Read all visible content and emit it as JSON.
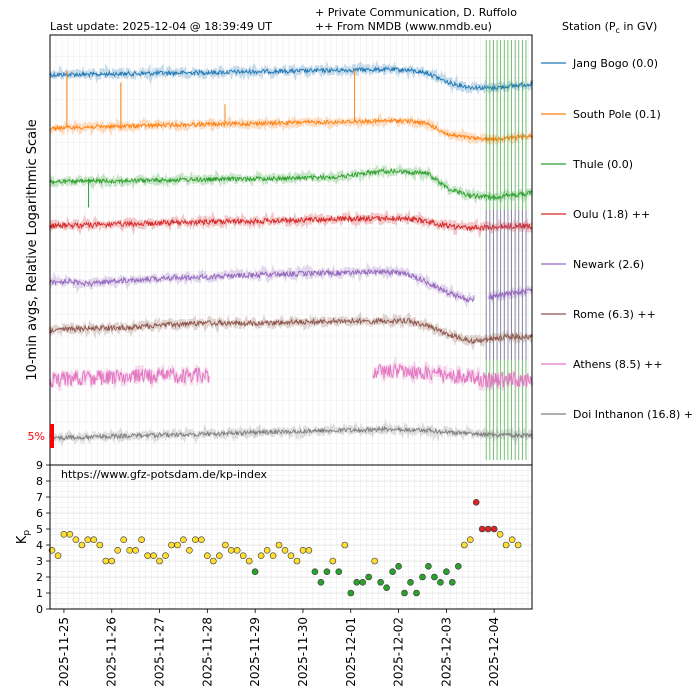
{
  "header": {
    "last_update": "Last update: 2025-12-04 @ 18:39:49 UT",
    "credit1": "+ Private Communication, D. Ruffolo",
    "credit2": "++ From NMDB (www.nmdb.eu)",
    "legend_title": "Station (P",
    "legend_title_sub": "c",
    "legend_title_tail": " in GV)"
  },
  "chart_data": [
    {
      "type": "line",
      "ylabel": "10-min avgs, Relative Logarithmic Scale",
      "y_scale": "relative logarithmic",
      "scale_bar_label": "5%",
      "grid": true,
      "legend_placement": "right",
      "series": [
        {
          "name": "Jang Bogo (0.0)",
          "color": "#1f77b4",
          "trend": [
            0.0,
            0.03,
            0.02,
            0.05,
            0.06,
            0.08,
            0.09,
            0.11,
            0.12,
            0.14,
            0.16,
            0.17,
            0.18,
            0.2,
            0.22,
            0.24,
            0.25,
            0.23,
            0.1,
            -0.35,
            -0.55,
            -0.6,
            -0.5,
            -0.4
          ],
          "noise": 0.1,
          "gap": null,
          "spikes": []
        },
        {
          "name": "South Pole (0.1)",
          "color": "#ff7f0e",
          "trend": [
            0.0,
            0.02,
            0.05,
            0.07,
            0.09,
            0.12,
            0.14,
            0.16,
            0.18,
            0.19,
            0.21,
            0.23,
            0.25,
            0.26,
            0.28,
            0.3,
            0.32,
            0.33,
            0.2,
            -0.3,
            -0.45,
            -0.5,
            -0.45,
            -0.35
          ],
          "noise": 0.09,
          "gap": null,
          "spikes": [
            {
              "x": 0.035,
              "h": 2.6
            },
            {
              "x": 0.147,
              "h": 2.0
            },
            {
              "x": 0.363,
              "h": 0.9
            },
            {
              "x": 0.632,
              "h": 2.4
            }
          ]
        },
        {
          "name": "Thule (0.0)",
          "color": "#2ca02c",
          "trend": [
            0.0,
            0.02,
            0.04,
            0.05,
            0.06,
            0.08,
            0.1,
            0.11,
            0.12,
            0.14,
            0.15,
            0.16,
            0.18,
            0.2,
            0.25,
            0.4,
            0.5,
            0.45,
            0.4,
            -0.3,
            -0.6,
            -0.7,
            -0.6,
            -0.5
          ],
          "noise": 0.1,
          "gap": null,
          "spikes": [
            {
              "x": 0.08,
              "h": -1.2
            }
          ]
        },
        {
          "name": "Oulu (1.8) ++",
          "color": "#d62728",
          "trend": [
            0.0,
            0.03,
            0.05,
            0.07,
            0.09,
            0.12,
            0.15,
            0.17,
            0.2,
            0.21,
            0.22,
            0.25,
            0.28,
            0.3,
            0.32,
            0.33,
            0.34,
            0.35,
            0.2,
            0.0,
            -0.1,
            -0.05,
            0.0,
            0.0
          ],
          "noise": 0.12,
          "gap": null,
          "spikes": []
        },
        {
          "name": "Newark (2.6)",
          "color": "#9467bd",
          "trend": [
            0.0,
            0.02,
            -0.1,
            0.05,
            0.1,
            0.15,
            0.2,
            0.22,
            0.25,
            0.3,
            0.32,
            0.35,
            0.38,
            0.4,
            0.42,
            0.44,
            0.45,
            0.4,
            0.0,
            -0.5,
            -0.8,
            -0.7,
            -0.5,
            -0.4
          ],
          "noise": 0.12,
          "gap": [
            0.88,
            0.91
          ],
          "spikes": []
        },
        {
          "name": "Rome (6.3) ++",
          "color": "#8c564b",
          "trend": [
            0.0,
            0.04,
            0.08,
            0.1,
            0.12,
            0.2,
            0.25,
            0.3,
            0.32,
            0.3,
            0.32,
            0.34,
            0.36,
            0.38,
            0.4,
            0.41,
            0.42,
            0.43,
            0.2,
            -0.2,
            -0.5,
            -0.4,
            -0.3,
            -0.3
          ],
          "noise": 0.12,
          "gap": null,
          "spikes": []
        },
        {
          "name": "Athens (8.5) ++",
          "color": "#e377c2",
          "trend": [
            0.0,
            0.05,
            0.1,
            0.12,
            0.15,
            0.18,
            0.2,
            0.22,
            0.25,
            0.28,
            0.3,
            0.32,
            0.34,
            0.36,
            0.38,
            0.4,
            0.42,
            0.4,
            0.3,
            0.2,
            0.1,
            0.0,
            0.0,
            0.0
          ],
          "noise": 0.35,
          "gap": [
            0.33,
            0.67
          ],
          "spikes": []
        },
        {
          "name": "Doi Inthanon (16.8) +",
          "color": "#7f7f7f",
          "trend": [
            0.0,
            0.02,
            0.05,
            0.08,
            0.1,
            0.13,
            0.15,
            0.18,
            0.2,
            0.22,
            0.25,
            0.27,
            0.3,
            0.33,
            0.35,
            0.37,
            0.4,
            0.38,
            0.35,
            0.25,
            0.2,
            0.15,
            0.12,
            0.1
          ],
          "noise": 0.1,
          "gap": null,
          "spikes": []
        }
      ]
    },
    {
      "type": "scatter",
      "title": "https://www.gfz-potsdam.de/kp-index",
      "ylabel": "K",
      "ylabel_sub": "p",
      "ylim": [
        0,
        9
      ],
      "yticks": [
        0,
        1,
        2,
        3,
        4,
        5,
        6,
        7,
        8,
        9
      ],
      "xlim": [
        "2025-11-24T17:00",
        "2025-12-04T19:00"
      ],
      "xticks": [
        "2025-11-25",
        "2025-11-26",
        "2025-11-27",
        "2025-11-28",
        "2025-11-29",
        "2025-11-30",
        "2025-12-01",
        "2025-12-02",
        "2025-12-03",
        "2025-12-04"
      ],
      "interval_hours": 3,
      "first_time": "2025-11-24T18:00",
      "values": [
        3.667,
        3.333,
        4.667,
        4.667,
        4.333,
        4.0,
        4.333,
        4.333,
        4.0,
        3.0,
        3.0,
        3.667,
        4.333,
        3.667,
        3.667,
        4.333,
        3.333,
        3.333,
        3.0,
        3.333,
        4.0,
        4.0,
        4.333,
        3.667,
        4.333,
        4.333,
        3.333,
        3.0,
        3.333,
        4.0,
        3.667,
        3.667,
        3.333,
        3.0,
        2.333,
        3.333,
        3.667,
        3.333,
        4.0,
        3.667,
        3.333,
        3.0,
        3.667,
        3.667,
        2.333,
        1.667,
        2.333,
        3.0,
        2.333,
        4.0,
        1.0,
        1.667,
        1.667,
        2.0,
        3.0,
        1.667,
        1.333,
        2.333,
        2.667,
        1.0,
        1.667,
        1.0,
        2.0,
        2.667,
        2.0,
        1.667,
        2.333,
        1.667,
        2.667,
        4.0,
        4.333,
        6.667,
        5.0,
        5.0,
        5.0,
        4.667,
        4.0,
        4.333,
        4.0
      ],
      "colors": {
        "quiet": "#2ca02c",
        "moderate": "#ffdd33",
        "storm": "#d62728"
      }
    }
  ]
}
